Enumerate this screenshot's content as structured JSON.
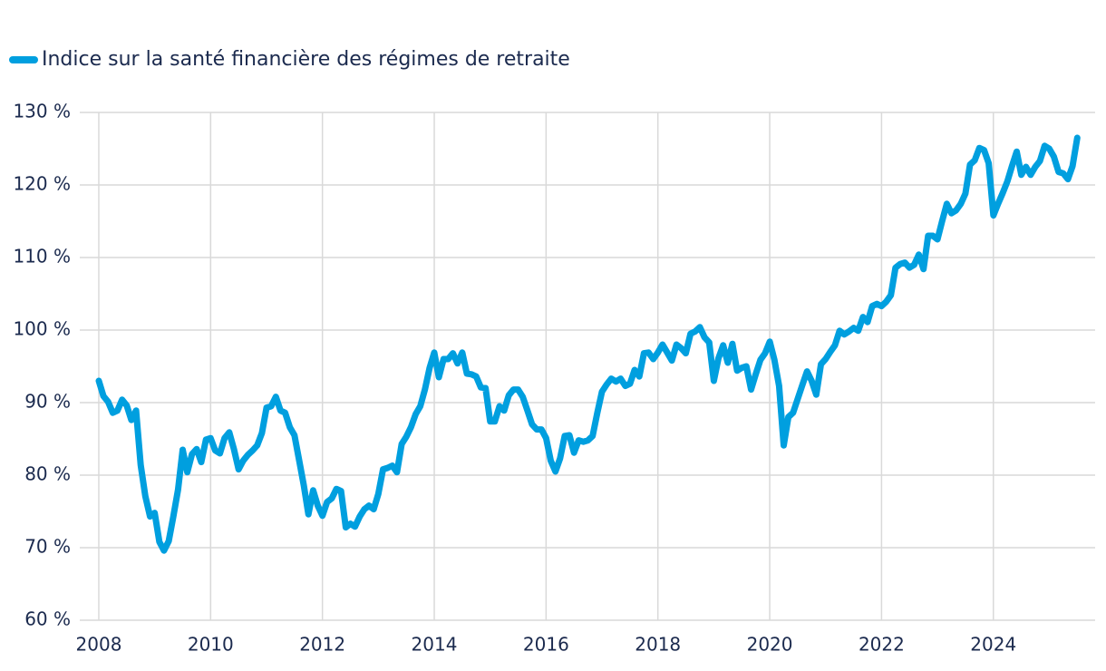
{
  "chart_data": {
    "type": "line",
    "x": [
      2008,
      2008.083,
      2008.167,
      2008.25,
      2008.333,
      2008.417,
      2008.5,
      2008.583,
      2008.667,
      2008.75,
      2008.833,
      2008.917,
      2009,
      2009.083,
      2009.167,
      2009.25,
      2009.333,
      2009.417,
      2009.5,
      2009.583,
      2009.667,
      2009.75,
      2009.833,
      2009.917,
      2010,
      2010.083,
      2010.167,
      2010.25,
      2010.333,
      2010.417,
      2010.5,
      2010.583,
      2010.667,
      2010.75,
      2010.833,
      2010.917,
      2011,
      2011.083,
      2011.167,
      2011.25,
      2011.333,
      2011.417,
      2011.5,
      2011.583,
      2011.667,
      2011.75,
      2011.833,
      2011.917,
      2012,
      2012.083,
      2012.167,
      2012.25,
      2012.333,
      2012.417,
      2012.5,
      2012.583,
      2012.667,
      2012.75,
      2012.833,
      2012.917,
      2013,
      2013.083,
      2013.167,
      2013.25,
      2013.333,
      2013.417,
      2013.5,
      2013.583,
      2013.667,
      2013.75,
      2013.833,
      2013.917,
      2014,
      2014.083,
      2014.167,
      2014.25,
      2014.333,
      2014.417,
      2014.5,
      2014.583,
      2014.667,
      2014.75,
      2014.833,
      2014.917,
      2015,
      2015.083,
      2015.167,
      2015.25,
      2015.333,
      2015.417,
      2015.5,
      2015.583,
      2015.667,
      2015.75,
      2015.833,
      2015.917,
      2016,
      2016.083,
      2016.167,
      2016.25,
      2016.333,
      2016.417,
      2016.5,
      2016.583,
      2016.667,
      2016.75,
      2016.833,
      2016.917,
      2017,
      2017.083,
      2017.167,
      2017.25,
      2017.333,
      2017.417,
      2017.5,
      2017.583,
      2017.667,
      2017.75,
      2017.833,
      2017.917,
      2018,
      2018.083,
      2018.167,
      2018.25,
      2018.333,
      2018.417,
      2018.5,
      2018.583,
      2018.667,
      2018.75,
      2018.833,
      2018.917,
      2019,
      2019.083,
      2019.167,
      2019.25,
      2019.333,
      2019.417,
      2019.5,
      2019.583,
      2019.667,
      2019.75,
      2019.833,
      2019.917,
      2020,
      2020.083,
      2020.167,
      2020.25,
      2020.333,
      2020.417,
      2020.5,
      2020.583,
      2020.667,
      2020.75,
      2020.833,
      2020.917,
      2021,
      2021.083,
      2021.167,
      2021.25,
      2021.333,
      2021.417,
      2021.5,
      2021.583,
      2021.667,
      2021.75,
      2021.833,
      2021.917,
      2022,
      2022.083,
      2022.167,
      2022.25,
      2022.333,
      2022.417,
      2022.5,
      2022.583,
      2022.667,
      2022.75,
      2022.833,
      2022.917,
      2023,
      2023.083,
      2023.167,
      2023.25,
      2023.333,
      2023.417,
      2023.5,
      2023.583,
      2023.667,
      2023.75,
      2023.833,
      2023.917,
      2024,
      2024.083,
      2024.167,
      2024.25,
      2024.333,
      2024.417,
      2024.5,
      2024.583,
      2024.667,
      2024.75,
      2024.833,
      2024.917,
      2025,
      2025.083,
      2025.167,
      2025.25,
      2025.333,
      2025.417,
      2025.5
    ],
    "series": [
      {
        "name": "Indice sur la santé financière des régimes de retraite",
        "color": "#009fdf",
        "values": [
          93.0,
          90.9,
          90.1,
          88.6,
          88.9,
          90.4,
          89.6,
          87.6,
          88.9,
          81.4,
          77.1,
          74.3,
          74.8,
          70.8,
          69.6,
          70.9,
          74.3,
          78.0,
          83.5,
          80.4,
          82.9,
          83.6,
          81.8,
          84.9,
          85.1,
          83.4,
          83.0,
          85.1,
          85.9,
          83.6,
          80.8,
          82.0,
          82.8,
          83.4,
          84.1,
          85.8,
          89.3,
          89.5,
          90.8,
          88.9,
          88.6,
          86.6,
          85.5,
          82.1,
          78.6,
          74.6,
          77.9,
          75.8,
          74.4,
          76.3,
          76.8,
          78.1,
          77.8,
          72.8,
          73.3,
          72.9,
          74.3,
          75.3,
          75.8,
          75.3,
          77.4,
          80.8,
          81.0,
          81.3,
          80.4,
          84.3,
          85.3,
          86.6,
          88.4,
          89.5,
          91.8,
          94.8,
          96.9,
          93.5,
          96.0,
          96.0,
          96.8,
          95.4,
          96.9,
          94.0,
          93.9,
          93.6,
          92.1,
          92.0,
          87.4,
          87.4,
          89.5,
          88.9,
          91.0,
          91.8,
          91.8,
          90.8,
          88.9,
          87.0,
          86.3,
          86.3,
          85.1,
          82.0,
          80.5,
          82.3,
          85.4,
          85.5,
          83.1,
          84.8,
          84.6,
          84.8,
          85.4,
          88.6,
          91.5,
          92.5,
          93.3,
          92.9,
          93.3,
          92.3,
          92.6,
          94.5,
          93.6,
          96.8,
          96.9,
          96.0,
          96.9,
          98.0,
          96.9,
          95.8,
          98.0,
          97.5,
          96.8,
          99.5,
          99.8,
          100.4,
          99.0,
          98.3,
          93.0,
          96.1,
          97.9,
          95.5,
          98.1,
          94.4,
          94.8,
          95.0,
          91.8,
          93.9,
          95.9,
          96.8,
          98.4,
          95.9,
          92.3,
          84.1,
          88.0,
          88.6,
          90.5,
          92.4,
          94.3,
          93.0,
          91.1,
          95.3,
          96.0,
          97.0,
          97.9,
          99.9,
          99.4,
          99.8,
          100.3,
          99.9,
          101.8,
          101.1,
          103.3,
          103.6,
          103.3,
          103.9,
          104.8,
          108.6,
          109.1,
          109.3,
          108.6,
          109.0,
          110.4,
          108.4,
          113.0,
          113.0,
          112.5,
          115.0,
          117.4,
          116.1,
          116.5,
          117.4,
          118.8,
          122.8,
          123.4,
          125.1,
          124.8,
          123.0,
          115.8,
          117.4,
          118.9,
          120.5,
          122.6,
          124.6,
          121.4,
          122.5,
          121.4,
          122.5,
          123.3,
          125.4,
          125.0,
          123.9,
          121.8,
          121.6,
          120.8,
          122.6,
          126.5
        ]
      }
    ],
    "xlim": [
      2007.66,
      2025.82
    ],
    "xticks": [
      2008,
      2010,
      2012,
      2014,
      2016,
      2018,
      2020,
      2022,
      2024
    ],
    "ylim": [
      60,
      130
    ],
    "yticks": [
      {
        "value": 60,
        "label": "60 %"
      },
      {
        "value": 70,
        "label": "70 %"
      },
      {
        "value": 80,
        "label": "80 %"
      },
      {
        "value": 90,
        "label": "90 %"
      },
      {
        "value": 100,
        "label": "100 %"
      },
      {
        "value": 110,
        "label": "110 %"
      },
      {
        "value": 120,
        "label": "120 %"
      },
      {
        "value": 130,
        "label": "130 %"
      }
    ],
    "grid": true,
    "legend": "top-left"
  }
}
